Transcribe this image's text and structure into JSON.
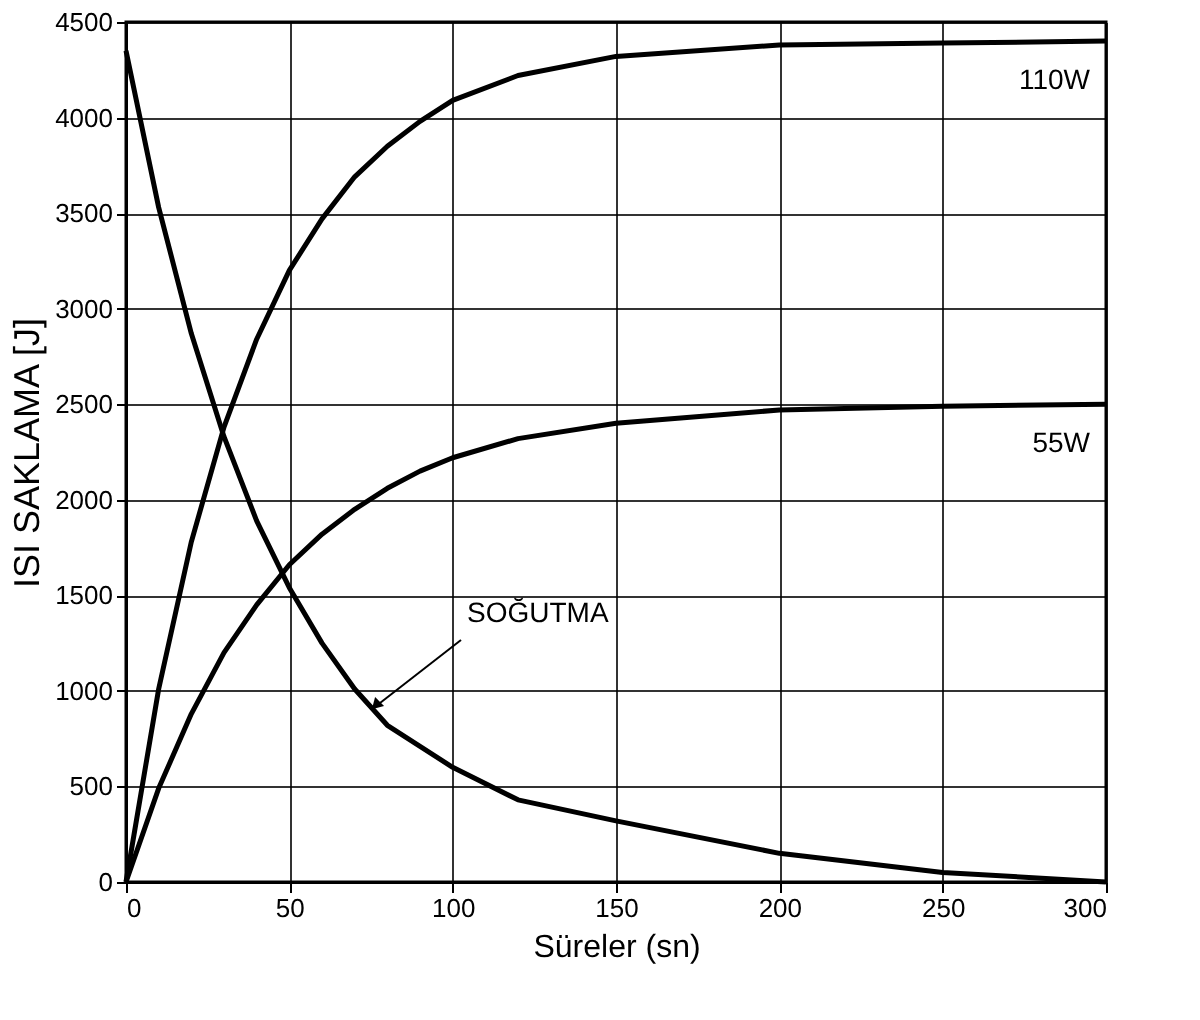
{
  "chart_data": {
    "type": "line",
    "xlabel": "Süreler (sn)",
    "ylabel": "ISI SAKLAMA [J]",
    "xlim": [
      0,
      300
    ],
    "ylim": [
      0,
      4500
    ],
    "xticks": [
      0,
      50,
      100,
      150,
      200,
      250,
      300
    ],
    "yticks": [
      0,
      500,
      1000,
      1500,
      2000,
      2500,
      3000,
      3500,
      4000,
      4500
    ],
    "grid": true,
    "marker": "none",
    "line_style": "solid",
    "series": [
      {
        "name": "110W",
        "color": "#000000",
        "x": [
          0,
          10,
          20,
          30,
          40,
          50,
          60,
          70,
          80,
          90,
          100,
          120,
          150,
          200,
          250,
          300
        ],
        "values": [
          0,
          1010,
          1780,
          2380,
          2840,
          3200,
          3470,
          3690,
          3850,
          3980,
          4090,
          4220,
          4320,
          4380,
          4390,
          4400
        ]
      },
      {
        "name": "55W",
        "color": "#000000",
        "x": [
          0,
          10,
          20,
          30,
          40,
          50,
          60,
          70,
          80,
          90,
          100,
          120,
          150,
          200,
          250,
          300
        ],
        "values": [
          0,
          490,
          880,
          1200,
          1450,
          1660,
          1820,
          1950,
          2060,
          2150,
          2220,
          2320,
          2400,
          2470,
          2490,
          2500
        ]
      },
      {
        "color": "#000000",
        "x": [
          0,
          10,
          20,
          30,
          40,
          50,
          60,
          70,
          80,
          100,
          120,
          150,
          200,
          250,
          300
        ],
        "values": [
          4350,
          3530,
          2870,
          2330,
          1890,
          1540,
          1250,
          1010,
          820,
          600,
          430,
          320,
          150,
          50,
          0
        ]
      }
    ],
    "annotations": [
      {
        "text": "SOĞUTMA",
        "x": 75,
        "y": 900
      }
    ]
  }
}
